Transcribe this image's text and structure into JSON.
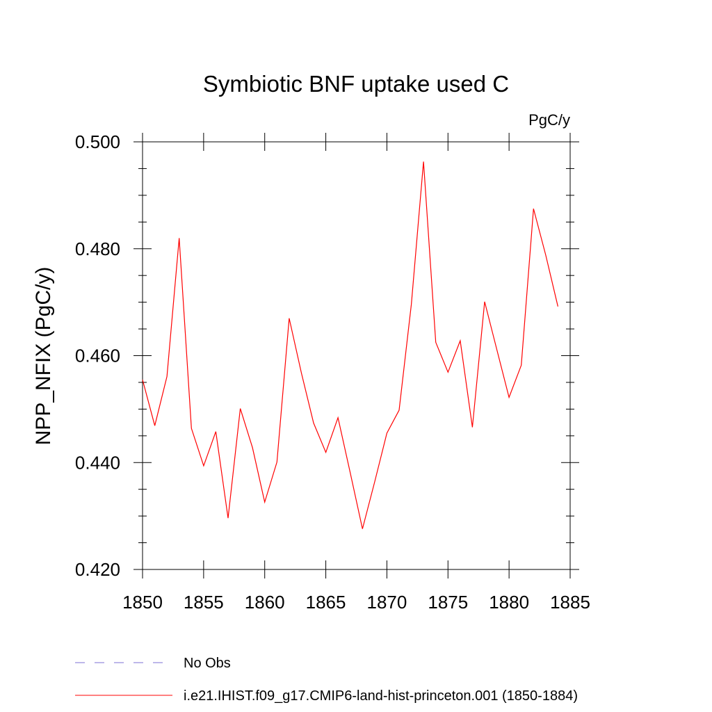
{
  "chart_data": {
    "type": "line",
    "title": "Symbiotic BNF uptake used C",
    "units_label": "PgC/y",
    "ylabel": "NPP_NFIX  (PgC/y)",
    "xlabel": "",
    "xlim": [
      1850,
      1885
    ],
    "ylim": [
      0.42,
      0.5
    ],
    "x_ticks": [
      "1850",
      "1855",
      "1860",
      "1865",
      "1870",
      "1875",
      "1880",
      "1885"
    ],
    "y_ticks": [
      "0.420",
      "0.440",
      "0.460",
      "0.480",
      "0.500"
    ],
    "grid": false,
    "legend_position": "bottom-left",
    "series": [
      {
        "name": "i.e21.IHIST.f09_g17.CMIP6-land-hist-princeton.001 (1850-1884)",
        "color": "#ff0000",
        "style": "solid",
        "x": [
          1850,
          1851,
          1852,
          1853,
          1854,
          1855,
          1856,
          1857,
          1858,
          1859,
          1860,
          1861,
          1862,
          1863,
          1864,
          1865,
          1866,
          1867,
          1868,
          1869,
          1870,
          1871,
          1872,
          1873,
          1874,
          1875,
          1876,
          1877,
          1878,
          1879,
          1880,
          1881,
          1882,
          1883,
          1884
        ],
        "y": [
          0.4555,
          0.4469,
          0.4561,
          0.482,
          0.4464,
          0.4394,
          0.4458,
          0.4296,
          0.4501,
          0.4428,
          0.4326,
          0.4401,
          0.467,
          0.4568,
          0.4474,
          0.4419,
          0.4484,
          0.4381,
          0.4276,
          0.4364,
          0.4455,
          0.4498,
          0.4696,
          0.4963,
          0.4625,
          0.4569,
          0.4628,
          0.4466,
          0.4701,
          0.4611,
          0.4522,
          0.4582,
          0.4875,
          0.4788,
          0.4692
        ]
      },
      {
        "name": "No Obs",
        "color": "#7b6fd6",
        "style": "dashed",
        "x": [],
        "y": []
      }
    ]
  }
}
